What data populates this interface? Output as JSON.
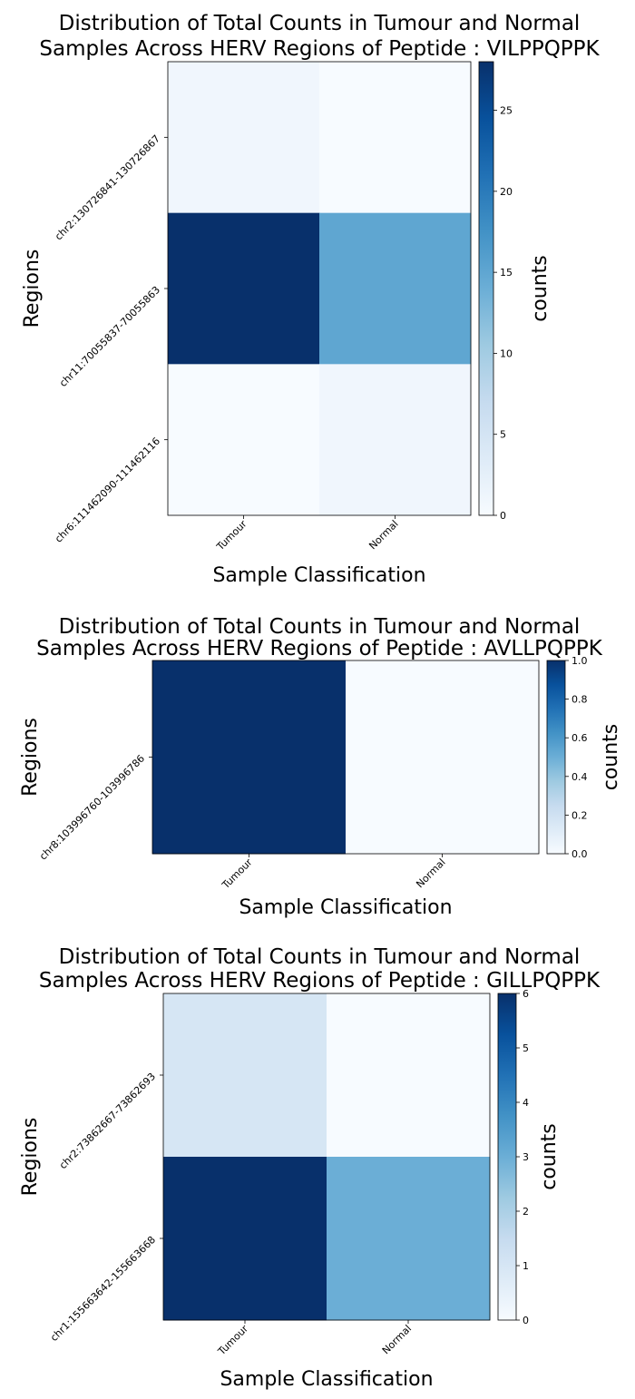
{
  "colormap": [
    "#f7fbff",
    "#deebf7",
    "#c6dbef",
    "#9ecae1",
    "#6baed6",
    "#4292c6",
    "#2171b5",
    "#08519c",
    "#08306b"
  ],
  "chart_data": [
    {
      "type": "heatmap",
      "title": [
        "Distribution of Total Counts in Tumour and Normal",
        "Samples Across HERV Regions of Peptide : VILPPQPPK"
      ],
      "xlabel": "Sample Classification",
      "ylabel": "Regions",
      "x_categories": [
        "Tumour",
        "Normal"
      ],
      "y_categories": [
        "chr2:13072684​1-13072686​7",
        "chr11:70055837-70055863",
        "chr6:111462090-111462116"
      ],
      "values": [
        [
          1,
          0
        ],
        [
          28,
          15
        ],
        [
          0,
          1
        ]
      ],
      "colorbar": {
        "label": "counts",
        "min": 0,
        "max": 28,
        "ticks": [
          "0",
          "5",
          "10",
          "15",
          "20",
          "25"
        ],
        "tick_values": [
          0,
          5,
          10,
          15,
          20,
          25
        ]
      }
    },
    {
      "type": "heatmap",
      "title": [
        "Distribution of Total Counts in Tumour and Normal",
        "Samples Across HERV Regions of Peptide : AVLLPQPPK"
      ],
      "xlabel": "Sample Classification",
      "ylabel": "Regions",
      "x_categories": [
        "Tumour",
        "Normal"
      ],
      "y_categories": [
        "chr8:103996760-103996786"
      ],
      "values": [
        [
          1,
          0
        ]
      ],
      "colorbar": {
        "label": "counts",
        "min": 0,
        "max": 1,
        "ticks": [
          "0.0",
          "0.2",
          "0.4",
          "0.6",
          "0.8",
          "1.0"
        ],
        "tick_values": [
          0,
          0.2,
          0.4,
          0.6,
          0.8,
          1.0
        ]
      }
    },
    {
      "type": "heatmap",
      "title": [
        "Distribution of Total Counts in Tumour and Normal",
        "Samples Across HERV Regions of Peptide : GILLPQPPK"
      ],
      "xlabel": "Sample Classification",
      "ylabel": "Regions",
      "x_categories": [
        "Tumour",
        "Normal"
      ],
      "y_categories": [
        "chr2:73862667-73862693",
        "chr1:155663642-155663668"
      ],
      "values": [
        [
          1,
          0
        ],
        [
          6,
          3
        ]
      ],
      "colorbar": {
        "label": "counts",
        "min": 0,
        "max": 6,
        "ticks": [
          "0",
          "1",
          "2",
          "3",
          "4",
          "5",
          "6"
        ],
        "tick_values": [
          0,
          1,
          2,
          3,
          4,
          5,
          6
        ]
      }
    }
  ]
}
